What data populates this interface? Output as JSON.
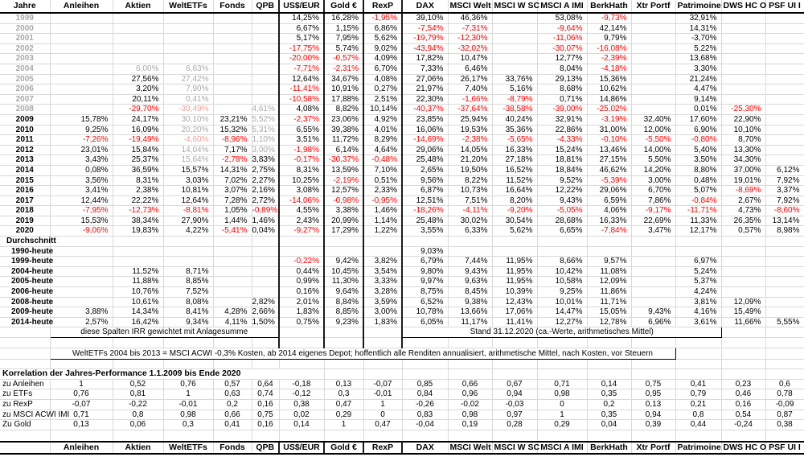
{
  "columns": [
    "Jahre",
    "Anleihen",
    "Aktien",
    "WeltETFs",
    "Fonds",
    "QPB",
    "US$/EUR",
    "Gold €",
    "RexP",
    "DAX",
    "MSCI Welt",
    "MSCI W SC",
    "MSCI A IMI",
    "BerkHath",
    "Xtr Portf",
    "Patrimoine",
    "DWS HC O",
    "PSF UI I"
  ],
  "year_rows": [
    {
      "label": "1999",
      "muted": true,
      "cells": [
        "",
        "",
        "",
        "",
        "",
        "14,25%",
        "16,28%",
        "r:-1,95%",
        "39,10%",
        "46,36%",
        "",
        "53,08%",
        "r:-9,73%",
        "",
        "32,91%",
        "",
        ""
      ]
    },
    {
      "label": "2000",
      "muted": true,
      "cells": [
        "",
        "",
        "",
        "",
        "",
        "6,67%",
        "1,15%",
        "6,86%",
        "r:-7,54%",
        "r:-7,31%",
        "",
        "r:-9,64%",
        "42,14%",
        "",
        "14,31%",
        "",
        ""
      ]
    },
    {
      "label": "2001",
      "muted": true,
      "cells": [
        "",
        "",
        "",
        "",
        "",
        "5,17%",
        "7,95%",
        "5,62%",
        "r:-19,79%",
        "r:-12,30%",
        "",
        "r:-11,06%",
        "9,79%",
        "",
        "-3,70%",
        "",
        ""
      ]
    },
    {
      "label": "2002",
      "muted": true,
      "cells": [
        "",
        "",
        "",
        "",
        "",
        "r:-17,75%",
        "5,74%",
        "9,02%",
        "r:-43,94%",
        "r:-32,02%",
        "",
        "r:-30,07%",
        "r:-16,08%",
        "",
        "5,22%",
        "",
        ""
      ]
    },
    {
      "label": "2003",
      "muted": true,
      "cells": [
        "",
        "",
        "",
        "",
        "",
        "r:-20,00%",
        "r:-0,57%",
        "4,09%",
        "17,82%",
        "10,47%",
        "",
        "12,77%",
        "r:-2,39%",
        "",
        "13,68%",
        "",
        ""
      ]
    },
    {
      "label": "2004",
      "muted": true,
      "cells": [
        "",
        "g:6,00%",
        "g:6,63%",
        "",
        "",
        "r:-7,71%",
        "r:-2,31%",
        "6,70%",
        "7,33%",
        "6,46%",
        "",
        "8,04%",
        "r:-4,18%",
        "",
        "3,30%",
        "",
        ""
      ]
    },
    {
      "label": "2005",
      "muted": true,
      "cells": [
        "",
        "27,56%",
        "g:27,42%",
        "",
        "",
        "12,64%",
        "34,67%",
        "4,08%",
        "27,06%",
        "26,17%",
        "33,76%",
        "29,13%",
        "15,36%",
        "",
        "21,24%",
        "",
        ""
      ]
    },
    {
      "label": "2006",
      "muted": true,
      "cells": [
        "",
        "3,20%",
        "g:7,90%",
        "",
        "",
        "r:-11,41%",
        "10,91%",
        "0,27%",
        "21,97%",
        "7,40%",
        "5,16%",
        "8,68%",
        "10,62%",
        "",
        "4,47%",
        "",
        ""
      ]
    },
    {
      "label": "2007",
      "muted": true,
      "cells": [
        "",
        "20,11%",
        "g:0,41%",
        "",
        "",
        "r:-10,58%",
        "17,88%",
        "2,51%",
        "22,30%",
        "r:-1,66%",
        "r:-8,79%",
        "0,71%",
        "14,86%",
        "",
        "9,14%",
        "",
        ""
      ]
    },
    {
      "label": "2008",
      "muted": true,
      "cells": [
        "",
        "r:-29,70%",
        "p:-39,49%",
        "",
        "g:4,61%",
        "4,08%",
        "8,82%",
        "10,14%",
        "r:-40,37%",
        "r:-37,64%",
        "r:-38,58%",
        "r:-39,00%",
        "r:-25,02%",
        "",
        "0,01%",
        "r:-25,30%",
        ""
      ]
    },
    {
      "label": "2009",
      "muted": false,
      "cells": [
        "15,78%",
        "24,17%",
        "g:30,10%",
        "23,21%",
        "g:5,52%",
        "r:-2,37%",
        "23,06%",
        "4,92%",
        "23,85%",
        "25,94%",
        "40,24%",
        "32,91%",
        "r:-3,19%",
        "32,40%",
        "17,60%",
        "22,90%",
        ""
      ]
    },
    {
      "label": "2010",
      "muted": false,
      "cells": [
        "9,25%",
        "16,09%",
        "g:20,20%",
        "15,32%",
        "g:5,31%",
        "6,55%",
        "39,38%",
        "4,01%",
        "16,06%",
        "19,53%",
        "35,36%",
        "22,86%",
        "31,00%",
        "12,00%",
        "6,90%",
        "10,10%",
        ""
      ]
    },
    {
      "label": "2011",
      "muted": false,
      "cells": [
        "r:-7,26%",
        "r:-19,49%",
        "p:-4,60%",
        "r:-8,96%",
        "g:1,10%",
        "3,51%",
        "11,72%",
        "8,29%",
        "r:-14,69%",
        "r:-2,38%",
        "r:-5,65%",
        "r:-4,33%",
        "r:-0,10%",
        "r:-5,50%",
        "r:-0,80%",
        "8,70%",
        ""
      ]
    },
    {
      "label": "2012",
      "muted": false,
      "cells": [
        "23,01%",
        "15,84%",
        "g:14,04%",
        "7,17%",
        "g:3,00%",
        "r:-1,98%",
        "6,14%",
        "4,64%",
        "29,06%",
        "14,05%",
        "16,33%",
        "15,24%",
        "13,46%",
        "14,00%",
        "5,40%",
        "13,30%",
        ""
      ]
    },
    {
      "label": "2013",
      "muted": false,
      "cells": [
        "3,43%",
        "25,37%",
        "g:15,64%",
        "r:-2,78%",
        "3,83%",
        "r:-0,17%",
        "r:-30,37%",
        "r:-0,48%",
        "25,48%",
        "21,20%",
        "27,18%",
        "18,81%",
        "27,15%",
        "5,50%",
        "3,50%",
        "34,30%",
        ""
      ]
    },
    {
      "label": "2014",
      "muted": false,
      "cells": [
        "0,08%",
        "36,59%",
        "15,57%",
        "14,31%",
        "2,75%",
        "8,31%",
        "13,59%",
        "7,10%",
        "2,65%",
        "19,50%",
        "16,52%",
        "18,84%",
        "46,62%",
        "14,20%",
        "8,80%",
        "37,00%",
        "6,12%"
      ]
    },
    {
      "label": "2015",
      "muted": false,
      "cells": [
        "3,56%",
        "8,31%",
        "3,03%",
        "7,02%",
        "2,27%",
        "10,25%",
        "r:-2,19%",
        "0,51%",
        "9,56%",
        "8,22%",
        "11,52%",
        "9,52%",
        "r:-5,39%",
        "3,00%",
        "0,48%",
        "19,01%",
        "7,92%"
      ]
    },
    {
      "label": "2016",
      "muted": false,
      "cells": [
        "3,41%",
        "2,38%",
        "10,81%",
        "3,07%",
        "2,16%",
        "3,08%",
        "12,57%",
        "2,33%",
        "6,87%",
        "10,73%",
        "16,64%",
        "12,22%",
        "29,06%",
        "6,70%",
        "5,07%",
        "r:-8,69%",
        "3,37%"
      ]
    },
    {
      "label": "2017",
      "muted": false,
      "cells": [
        "12,44%",
        "22,22%",
        "12,64%",
        "7,28%",
        "2,72%",
        "r:-14,06%",
        "r:-0,98%",
        "r:-0,95%",
        "12,51%",
        "7,51%",
        "8,20%",
        "9,43%",
        "6,59%",
        "7,86%",
        "r:-0,84%",
        "2,67%",
        "7,92%"
      ]
    },
    {
      "label": "2018",
      "muted": false,
      "cells": [
        "r:-7,95%",
        "r:-12,73%",
        "r:-8,81%",
        "1,05%",
        "r:-0,89%",
        "4,55%",
        "3,38%",
        "1,46%",
        "r:-18,26%",
        "r:-4,11%",
        "r:-9,20%",
        "r:-5,05%",
        "4,06%",
        "r:-9,17%",
        "r:-11,71%",
        "4,73%",
        "r:-8,60%"
      ]
    },
    {
      "label": "2019",
      "muted": false,
      "cells": [
        "15,53%",
        "38,34%",
        "27,90%",
        "1,44%",
        "1,46%",
        "2,43%",
        "20,99%",
        "1,14%",
        "25,48%",
        "30,02%",
        "30,54%",
        "28,68%",
        "16,33%",
        "22,69%",
        "11,33%",
        "26,35%",
        "13,14%"
      ]
    },
    {
      "label": "2020",
      "muted": false,
      "cells": [
        "r:-9,06%",
        "19,83%",
        "4,22%",
        "r:-5,41%",
        "0,04%",
        "r:-9,27%",
        "17,29%",
        "1,22%",
        "3,55%",
        "6,33%",
        "5,62%",
        "6,65%",
        "r:-7,84%",
        "3,47%",
        "12,17%",
        "0,57%",
        "8,98%"
      ]
    }
  ],
  "avg_label": "Durchschnitt",
  "avg_rows": [
    {
      "label": "1990-heute",
      "cells": [
        "",
        "",
        "",
        "",
        "",
        "",
        "",
        "",
        "9,03%",
        "",
        "",
        "",
        "",
        "",
        "",
        "",
        ""
      ]
    },
    {
      "label": "1999-heute",
      "cells": [
        "",
        "",
        "",
        "",
        "",
        "r:-0,22%",
        "9,42%",
        "3,82%",
        "6,79%",
        "7,44%",
        "11,95%",
        "8,66%",
        "9,57%",
        "",
        "6,97%",
        "",
        ""
      ]
    },
    {
      "label": "2004-heute",
      "cells": [
        "",
        "11,52%",
        "8,71%",
        "",
        "",
        "0,44%",
        "10,45%",
        "3,54%",
        "9,80%",
        "9,43%",
        "11,95%",
        "10,42%",
        "11,08%",
        "",
        "5,24%",
        "",
        ""
      ]
    },
    {
      "label": "2005-heute",
      "cells": [
        "",
        "11,88%",
        "8,85%",
        "",
        "",
        "0,99%",
        "11,30%",
        "3,33%",
        "9,97%",
        "9,63%",
        "11,95%",
        "10,58%",
        "12,09%",
        "",
        "5,37%",
        "",
        ""
      ]
    },
    {
      "label": "2006-heute",
      "cells": [
        "",
        "10,76%",
        "7,52%",
        "",
        "",
        "0,16%",
        "9,64%",
        "3,28%",
        "8,75%",
        "8,45%",
        "10,39%",
        "9,25%",
        "11,86%",
        "",
        "4,24%",
        "",
        ""
      ]
    },
    {
      "label": "2008-heute",
      "cells": [
        "",
        "10,61%",
        "8,08%",
        "",
        "2,82%",
        "2,01%",
        "8,84%",
        "3,59%",
        "6,52%",
        "9,38%",
        "12,43%",
        "10,01%",
        "11,71%",
        "",
        "3,81%",
        "12,09%",
        ""
      ]
    },
    {
      "label": "2009-heute",
      "cells": [
        "3,88%",
        "14,34%",
        "8,41%",
        "4,28%",
        "2,66%",
        "1,83%",
        "8,85%",
        "3,00%",
        "10,78%",
        "13,66%",
        "17,06%",
        "14,47%",
        "15,05%",
        "9,43%",
        "4,16%",
        "15,49%",
        ""
      ]
    },
    {
      "label": "2014-heute",
      "cells": [
        "2,57%",
        "16,42%",
        "9,34%",
        "4,11%",
        "1,50%",
        "0,75%",
        "9,23%",
        "1,83%",
        "6,05%",
        "11,17%",
        "11,41%",
        "12,27%",
        "12,78%",
        "6,96%",
        "3,61%",
        "11,66%",
        "5,55%"
      ]
    }
  ],
  "notes": {
    "irr": "diese Spalten IRR gewichtet mit Anlagesumme",
    "stand": "Stand 31.12.2020 (ca.-Werte, arithmetisches Mittel)",
    "weltetfs": "WeltETFs 2004 bis 2013 = MSCI ACWI -0,3% Kosten, ab 2014 eigenes Depot; hoffentlich alle Renditen annualisiert, arithmetische Mittel, nach Kosten, vor Steuern"
  },
  "correlation": {
    "title": "Korrelation der Jahres-Performance 1.1.2009 bis Ende 2020",
    "rows": [
      {
        "label": "zu Anleihen",
        "values": [
          "1",
          "0,52",
          "0,76",
          "0,57",
          "0,64",
          "-0,18",
          "0,13",
          "-0,07",
          "0,85",
          "0,66",
          "0,67",
          "0,71",
          "0,14",
          "0,75",
          "0,41",
          "0,23",
          "0,6"
        ]
      },
      {
        "label": "zu ETFs",
        "values": [
          "0,76",
          "0,81",
          "1",
          "0,63",
          "0,74",
          "-0,12",
          "0,3",
          "-0,01",
          "0,84",
          "0,96",
          "0,94",
          "0,98",
          "0,35",
          "0,95",
          "0,79",
          "0,46",
          "0,78"
        ]
      },
      {
        "label": "zu RexP",
        "values": [
          "-0,07",
          "-0,22",
          "-0,01",
          "0,2",
          "0,16",
          "0,38",
          "0,47",
          "1",
          "-0,26",
          "-0,02",
          "-0,03",
          "0",
          "0,2",
          "0,13",
          "0,21",
          "0,16",
          "-0,09"
        ]
      },
      {
        "label": "zu MSCI ACWI IMI",
        "values": [
          "0,71",
          "0,8",
          "0,98",
          "0,66",
          "0,75",
          "0,02",
          "0,29",
          "0",
          "0,83",
          "0,98",
          "0,97",
          "1",
          "0,35",
          "0,94",
          "0,8",
          "0,54",
          "0,87"
        ]
      },
      {
        "label": "Zu Gold",
        "values": [
          "0,13",
          "0,06",
          "0,3",
          "0,41",
          "0,16",
          "0,14",
          "1",
          "0,47",
          "-0,04",
          "0,19",
          "0,28",
          "0,29",
          "0,04",
          "0,39",
          "0,44",
          "-0,24",
          "0,38"
        ]
      }
    ]
  },
  "colors": {
    "negative": "#fe0000",
    "muted": "#a8a8a8",
    "muted_negative": "#f2a09e",
    "grid": "#d9d9d9",
    "border": "#000000"
  }
}
